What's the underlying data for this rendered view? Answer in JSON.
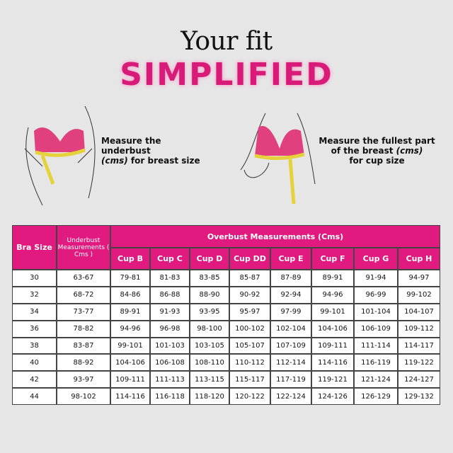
{
  "header": {
    "title": "Your fit",
    "subtitle": "SIMPLIFIED"
  },
  "instructions": [
    {
      "parts": [
        "Measure the underbust",
        "(cms)",
        "for breast size"
      ]
    },
    {
      "parts": [
        "Measure the  fullest part",
        "of the breast",
        "(cms)",
        "for cup size"
      ]
    }
  ],
  "table": {
    "header": {
      "bra_size": "Bra Size",
      "underbust": "Underbust Measurements ( Cms )",
      "overbust": "Overbust Measurements (Cms)",
      "cups": [
        "Cup B",
        "Cup C",
        "Cup D",
        "Cup DD",
        "Cup E",
        "Cup F",
        "Cup G",
        "Cup H"
      ]
    },
    "rows": [
      [
        "30",
        "63-67",
        "79-81",
        "81-83",
        "83-85",
        "85-87",
        "87-89",
        "89-91",
        "91-94",
        "94-97"
      ],
      [
        "32",
        "68-72",
        "84-86",
        "86-88",
        "88-90",
        "90-92",
        "92-94",
        "94-96",
        "96-99",
        "99-102"
      ],
      [
        "34",
        "73-77",
        "89-91",
        "91-93",
        "93-95",
        "95-97",
        "97-99",
        "99-101",
        "101-104",
        "104-107"
      ],
      [
        "36",
        "78-82",
        "94-96",
        "96-98",
        "98-100",
        "100-102",
        "102-104",
        "104-106",
        "106-109",
        "109-112"
      ],
      [
        "38",
        "83-87",
        "99-101",
        "101-103",
        "103-105",
        "105-107",
        "107-109",
        "109-111",
        "111-114",
        "114-117"
      ],
      [
        "40",
        "88-92",
        "104-106",
        "106-108",
        "108-110",
        "110-112",
        "112-114",
        "114-116",
        "116-119",
        "119-122"
      ],
      [
        "42",
        "93-97",
        "109-111",
        "111-113",
        "113-115",
        "115-117",
        "117-119",
        "119-121",
        "121-124",
        "124-127"
      ],
      [
        "44",
        "98-102",
        "114-116",
        "116-118",
        "118-120",
        "120-122",
        "122-124",
        "124-126",
        "126-129",
        "129-132"
      ]
    ]
  }
}
